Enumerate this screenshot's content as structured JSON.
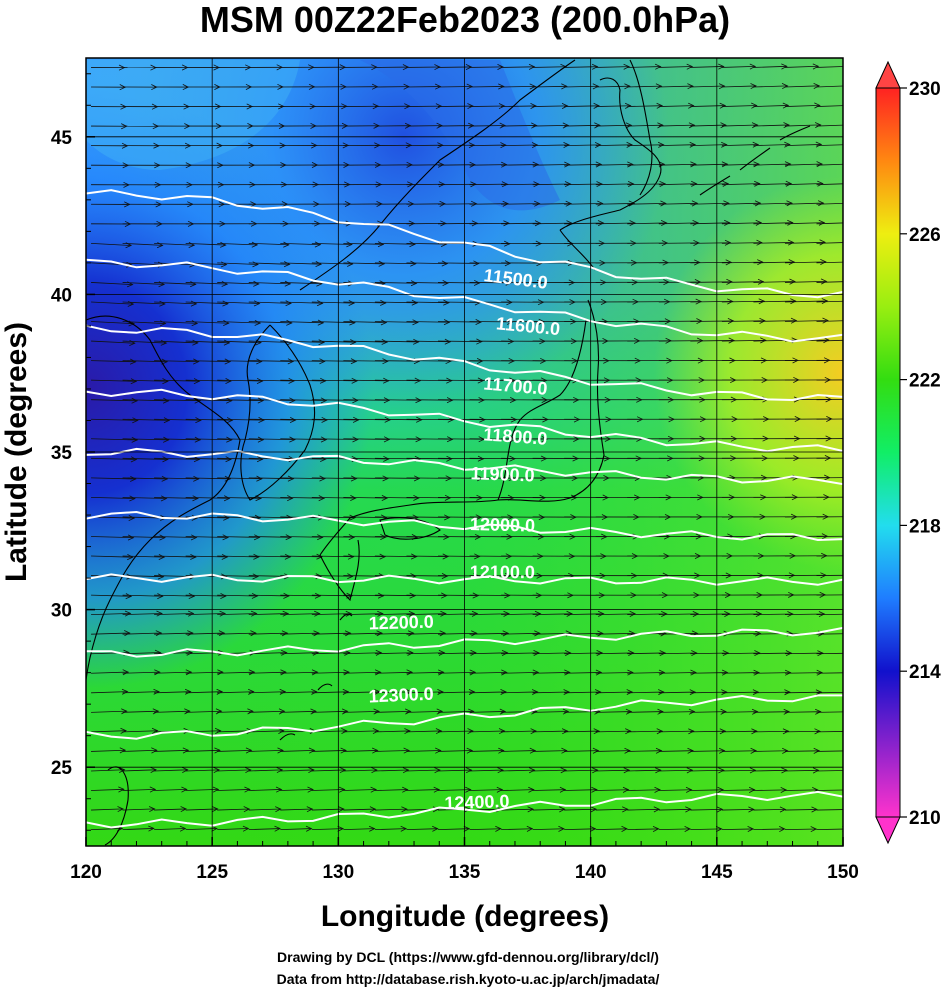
{
  "title": "MSM 00Z22Feb2023 (200.0hPa)",
  "x_axis": {
    "label": "Longitude (degrees)",
    "range": [
      120,
      150
    ],
    "ticks": [
      "120",
      "125",
      "130",
      "135",
      "140",
      "145",
      "150"
    ]
  },
  "y_axis": {
    "label": "Latitude  (degrees)",
    "range": [
      22.5,
      47.5
    ],
    "ticks": [
      "25",
      "30",
      "35",
      "40",
      "45"
    ]
  },
  "colorbar": {
    "range": [
      210,
      230
    ],
    "labels": [
      "230",
      "226",
      "222",
      "218",
      "214",
      "210"
    ],
    "colors": {
      "210": "#ff33cc",
      "212": "#8822cc",
      "214": "#1111cc",
      "216": "#1f7dff",
      "218": "#22ddee",
      "220": "#11ee66",
      "222": "#33dd11",
      "224": "#99ee11",
      "226": "#eeee11",
      "228": "#ff8811",
      "230": "#ff2222"
    }
  },
  "contours": {
    "labels": [
      "11500.0",
      "11600.0",
      "11700.0",
      "11800.0",
      "11900.0",
      "12000.0",
      "12100.0",
      "12200.0",
      "12300.0",
      "12400.0"
    ]
  },
  "credits": {
    "line1": "Drawing by DCL (https://www.gfd-dennou.org/library/dcl/)",
    "line2": "Data from http://database.rish.kyoto-u.ac.jp/arch/jmadata/"
  }
}
